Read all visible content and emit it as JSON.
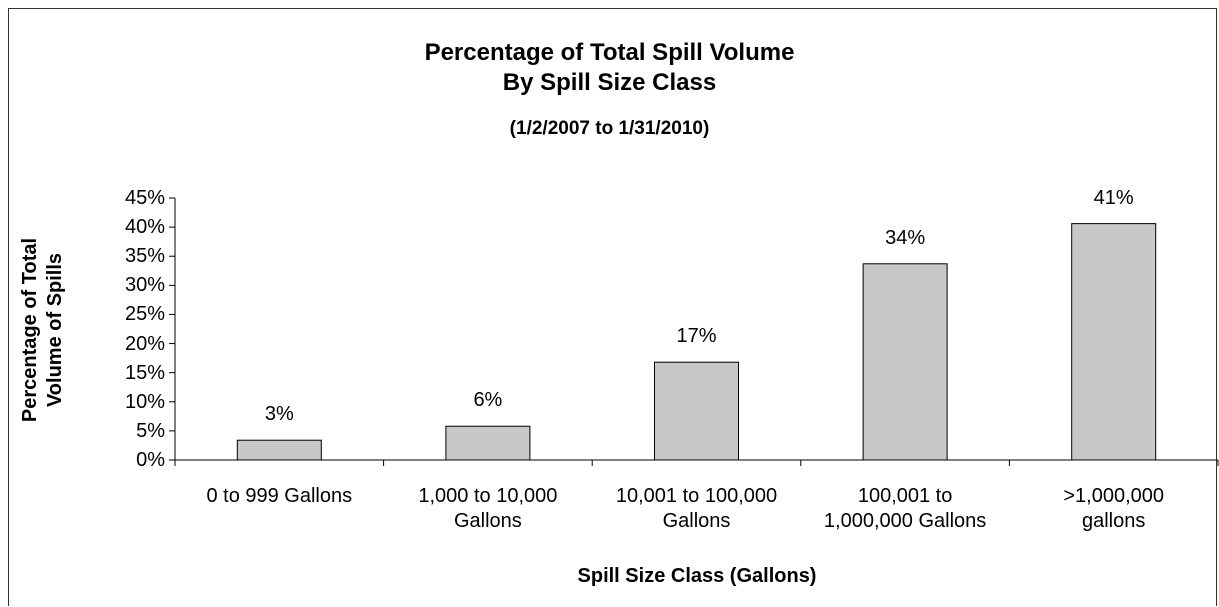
{
  "chart_data": {
    "type": "bar",
    "title": "Percentage of Total Spill Volume\nBy Spill Size Class",
    "subtitle": "(1/2/2007 to 1/31/2010)",
    "x_label": "Spill Size Class (Gallons)",
    "y_label": "Percentage of Total\nVolume of Spills",
    "categories": [
      "0 to 999 Gallons",
      "1,000 to 10,000\nGallons",
      "10,001 to 100,000\nGallons",
      "100,001 to\n1,000,000 Gallons",
      ">1,000,000\ngallons"
    ],
    "values": [
      3.4,
      5.8,
      16.8,
      33.7,
      40.6
    ],
    "value_labels": [
      "3%",
      "6%",
      "17%",
      "34%",
      "41%"
    ],
    "color": "#c8c8c8",
    "ylim": [
      0,
      45
    ],
    "yticks": [
      {
        "value": 0,
        "label": "0%"
      },
      {
        "value": 5,
        "label": "5%"
      },
      {
        "value": 10,
        "label": "10%"
      },
      {
        "value": 15,
        "label": "15%"
      },
      {
        "value": 20,
        "label": "20%"
      },
      {
        "value": 25,
        "label": "25%"
      },
      {
        "value": 30,
        "label": "30%"
      },
      {
        "value": 35,
        "label": "35%"
      },
      {
        "value": 40,
        "label": "40%"
      },
      {
        "value": 45,
        "label": "45%"
      }
    ],
    "grid": false
  }
}
